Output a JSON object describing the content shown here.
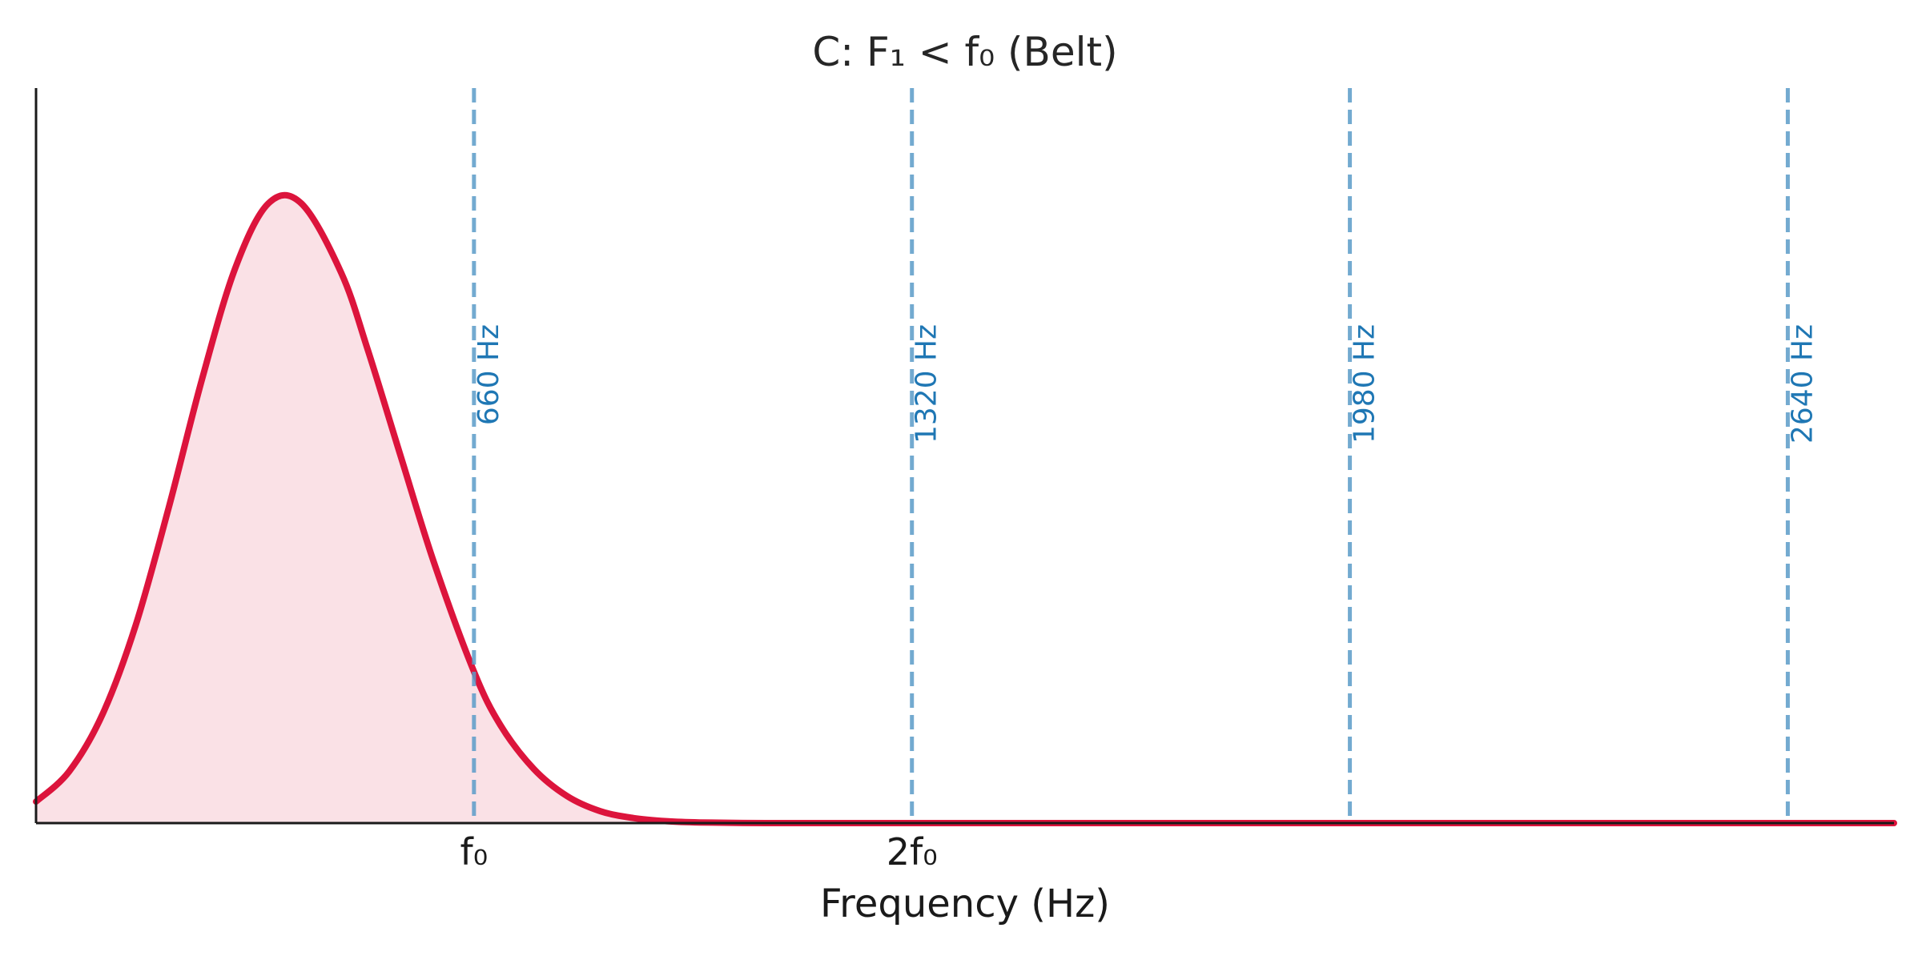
{
  "chart_data": {
    "type": "area",
    "title": "C: F₁ < f₀ (Belt)",
    "xlabel": "Frequency (Hz)",
    "ylabel": "",
    "x_ticks": [
      {
        "value": 660,
        "label": "f₀"
      },
      {
        "value": 1320,
        "label": "2f₀"
      }
    ],
    "xlim": [
      0,
      2800
    ],
    "ylim": [
      0,
      1.165
    ],
    "grid": false,
    "legend": "none",
    "series": [
      {
        "style": "filled curve",
        "color": "#dc143c",
        "fill_color": "#dc143c",
        "fill_opacity": 0.13,
        "x": [
          0,
          50,
          100,
          150,
          200,
          250,
          300,
          350,
          400,
          460,
          500,
          550,
          600,
          660,
          700,
          750,
          800,
          850,
          900,
          950,
          1000,
          1100,
          1200,
          1320,
          1500,
          2000,
          2800
        ],
        "y": [
          0.034,
          0.082,
          0.172,
          0.313,
          0.5,
          0.703,
          0.879,
          0.982,
          0.982,
          0.872,
          0.75,
          0.58,
          0.412,
          0.24,
          0.155,
          0.086,
          0.043,
          0.019,
          0.008,
          0.003,
          0.001,
          0.0,
          0.0,
          0.0,
          0.0,
          0.0,
          0.0
        ]
      }
    ],
    "reference_lines": [
      {
        "x": 660,
        "label": "660 Hz"
      },
      {
        "x": 1320,
        "label": "1320 Hz"
      },
      {
        "x": 1980,
        "label": "1980 Hz"
      },
      {
        "x": 2640,
        "label": "2640 Hz"
      }
    ],
    "colors": {
      "curve": "#dc143c",
      "reference_line": "#5b9bc8",
      "reference_label": "#1f77b4",
      "axis": "#1a1a1a",
      "title": "#262626"
    }
  }
}
